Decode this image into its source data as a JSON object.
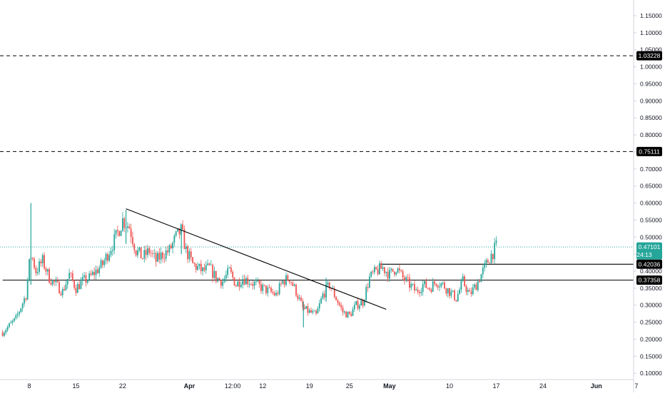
{
  "colors": {
    "up": "#26a69a",
    "down": "#ef5350",
    "axis_text": "#131722",
    "axis_line": "#d1d4dc",
    "trendline": "#000000",
    "level_line": "#000000",
    "price_label_bg": "#000000",
    "current_price_bg": "#26a69a",
    "label_text": "#ffffff"
  },
  "chart_data": {
    "type": "candlestick",
    "title": "",
    "xlabel": "",
    "ylabel": "",
    "ylim": [
      0.09,
      1.175
    ],
    "y_ticks": [
      0.1,
      0.15,
      0.2,
      0.25,
      0.3,
      0.35,
      0.4,
      0.45,
      0.5,
      0.55,
      0.6,
      0.65,
      0.7,
      0.75,
      0.8,
      0.85,
      0.9,
      0.95,
      1.0,
      1.05,
      1.1,
      1.15
    ],
    "y_tick_labels": [
      "0.10000",
      "0.15000",
      "0.20000",
      "0.25000",
      "0.30000",
      "0.35000",
      "0.40000",
      "0.45000",
      "0.50000",
      "0.55000",
      "0.60000",
      "0.65000",
      "0.70000",
      "0.75000",
      "0.80000",
      "0.85000",
      "0.90000",
      "0.95000",
      "1.00000",
      "1.05000",
      "1.10000",
      "1.15000"
    ],
    "x_ticks": [
      {
        "label": "8",
        "day": 0
      },
      {
        "label": "15",
        "day": 7
      },
      {
        "label": "22",
        "day": 14
      },
      {
        "label": "Apr",
        "day": 24
      },
      {
        "label": "12:00",
        "day": 30.5
      },
      {
        "label": "12",
        "day": 35
      },
      {
        "label": "19",
        "day": 42
      },
      {
        "label": "25",
        "day": 48
      },
      {
        "label": "May",
        "day": 54
      },
      {
        "label": "10",
        "day": 63
      },
      {
        "label": "17",
        "day": 70
      },
      {
        "label": "24",
        "day": 77
      },
      {
        "label": "Jun",
        "day": 85
      },
      {
        "label": "7",
        "day": 91
      }
    ],
    "x_range_days": [
      -4,
      93
    ],
    "candles_per_day": 4,
    "price_path": [
      [
        -4,
        0.22
      ],
      [
        -2,
        0.26
      ],
      [
        -0.5,
        0.33
      ],
      [
        0,
        0.42
      ],
      [
        0.3,
        0.45
      ],
      [
        1,
        0.4
      ],
      [
        2,
        0.43
      ],
      [
        3,
        0.38
      ],
      [
        4,
        0.36
      ],
      [
        5,
        0.34
      ],
      [
        6,
        0.39
      ],
      [
        7,
        0.35
      ],
      [
        8,
        0.37
      ],
      [
        9,
        0.38
      ],
      [
        10,
        0.4
      ],
      [
        11,
        0.42
      ],
      [
        12,
        0.46
      ],
      [
        13,
        0.5
      ],
      [
        14,
        0.55
      ],
      [
        15,
        0.53
      ],
      [
        16,
        0.46
      ],
      [
        17,
        0.44
      ],
      [
        18,
        0.46
      ],
      [
        19,
        0.43
      ],
      [
        20,
        0.45
      ],
      [
        21,
        0.46
      ],
      [
        22,
        0.5
      ],
      [
        22.8,
        0.52
      ],
      [
        23.5,
        0.46
      ],
      [
        24.5,
        0.42
      ],
      [
        26,
        0.4
      ],
      [
        27,
        0.41
      ],
      [
        28,
        0.38
      ],
      [
        29,
        0.37
      ],
      [
        30,
        0.4
      ],
      [
        31,
        0.36
      ],
      [
        32,
        0.38
      ],
      [
        33,
        0.37
      ],
      [
        34,
        0.36
      ],
      [
        35,
        0.35
      ],
      [
        36,
        0.34
      ],
      [
        37,
        0.33
      ],
      [
        38,
        0.37
      ],
      [
        39,
        0.38
      ],
      [
        40,
        0.34
      ],
      [
        41,
        0.29
      ],
      [
        42,
        0.28
      ],
      [
        43,
        0.27
      ],
      [
        44,
        0.33
      ],
      [
        45,
        0.36
      ],
      [
        46,
        0.32
      ],
      [
        47,
        0.28
      ],
      [
        48,
        0.27
      ],
      [
        49,
        0.3
      ],
      [
        50,
        0.31
      ],
      [
        51,
        0.38
      ],
      [
        52,
        0.4
      ],
      [
        53,
        0.41
      ],
      [
        54,
        0.39
      ],
      [
        55,
        0.41
      ],
      [
        56,
        0.38
      ],
      [
        57,
        0.36
      ],
      [
        58,
        0.34
      ],
      [
        59,
        0.36
      ],
      [
        60,
        0.35
      ],
      [
        61,
        0.37
      ],
      [
        62,
        0.36
      ],
      [
        63,
        0.34
      ],
      [
        64,
        0.32
      ],
      [
        65,
        0.37
      ],
      [
        66,
        0.33
      ],
      [
        67,
        0.36
      ],
      [
        68,
        0.4
      ],
      [
        69,
        0.44
      ],
      [
        70,
        0.471
      ]
    ],
    "highlight_wicks": [
      {
        "day": 0.25,
        "high": 0.6,
        "low": 0.36
      },
      {
        "day": 14.5,
        "high": 0.58,
        "low": 0.48
      },
      {
        "day": 22.8,
        "high": 0.53,
        "low": 0.45
      },
      {
        "day": 44.5,
        "high": 0.38,
        "low": 0.31
      },
      {
        "day": 41.1,
        "high": 0.31,
        "low": 0.235
      }
    ],
    "trendline": {
      "from": {
        "day": 14.5,
        "price": 0.583
      },
      "to": {
        "day": 53.5,
        "price": 0.288
      }
    },
    "horizontal_levels": [
      {
        "price": 1.03228,
        "label": "1.03228",
        "style": "dashed"
      },
      {
        "price": 0.75111,
        "label": "0.75111",
        "style": "dashed"
      },
      {
        "price": 0.42036,
        "label": "0.42036",
        "style": "solid",
        "from_day": 52.6
      },
      {
        "price": 0.37358,
        "label": "0.37358",
        "style": "solid",
        "from_day": -4
      }
    ],
    "current_price": {
      "price": 0.47101,
      "label": "0.47101",
      "countdown": "24:13"
    }
  }
}
